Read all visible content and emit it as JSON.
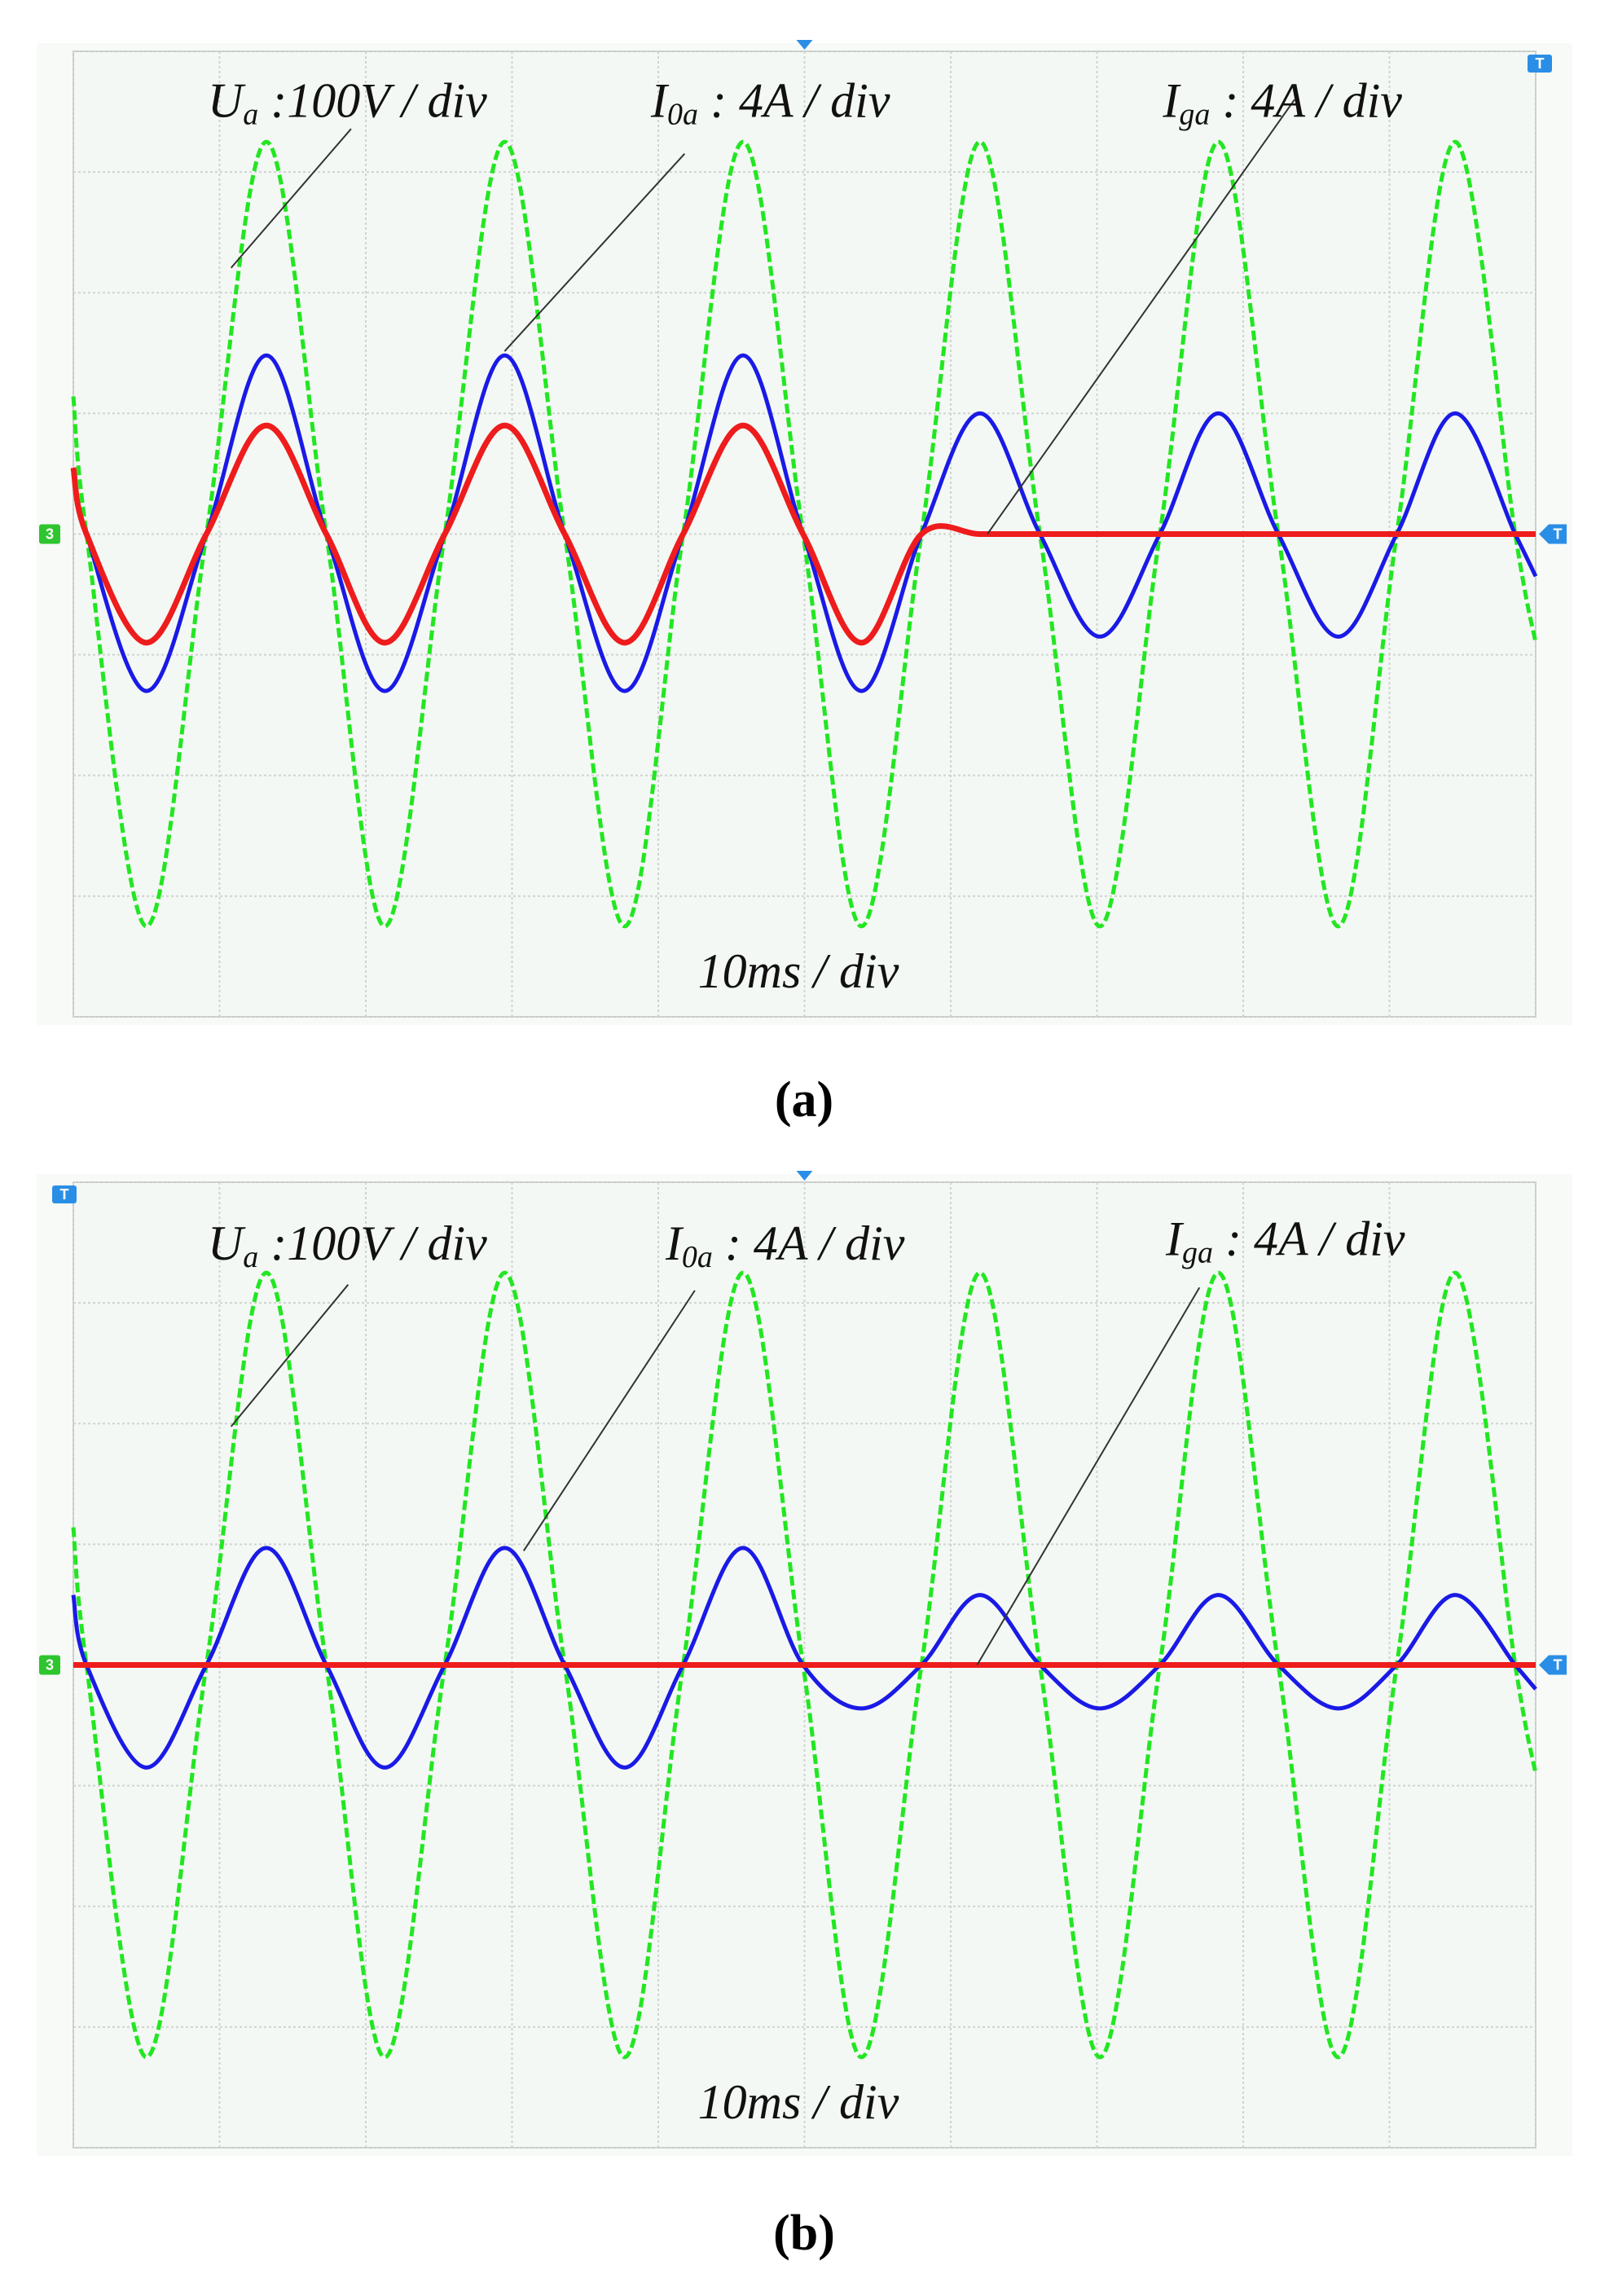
{
  "chart_data": [
    {
      "type": "line",
      "caption": "(a)",
      "x_label": "10ms / div",
      "channel_marker": "3",
      "trigger_marker": "T",
      "xlim": [
        0,
        100
      ],
      "xticks": [
        0,
        10,
        20,
        30,
        40,
        50,
        60,
        70,
        80,
        90,
        100
      ],
      "ylim": [
        -4,
        4
      ],
      "yticks": [
        -4,
        -3,
        -2,
        -1,
        0,
        1,
        2,
        3,
        4
      ],
      "grid": true,
      "x": [
        0,
        0.9,
        5.0,
        9.1,
        13.2,
        17.3,
        21.3,
        25.4,
        29.5,
        33.6,
        37.7,
        41.7,
        45.8,
        49.9,
        53.9,
        58.0,
        62.0,
        66.1,
        70.2,
        74.3,
        78.3,
        82.4,
        86.5,
        90.5,
        94.5,
        98.6,
        100
      ],
      "series": [
        {
          "name": "Ua",
          "color": "#22e622",
          "values": [
            1.14,
            0,
            -3.25,
            0,
            3.25,
            0,
            -3.25,
            0,
            3.25,
            0,
            -3.25,
            0,
            3.25,
            0,
            -3.25,
            0,
            3.25,
            0,
            -3.25,
            0,
            3.25,
            0,
            -3.25,
            0,
            3.25,
            0,
            -0.9
          ]
        },
        {
          "name": "I0a",
          "color": "#1a1ae6",
          "values": [
            0.5,
            0,
            -1.3,
            0,
            1.48,
            0,
            -1.3,
            0,
            1.48,
            0,
            -1.3,
            0,
            1.48,
            0,
            -1.3,
            0,
            1.0,
            0,
            -0.85,
            0,
            1.0,
            0,
            -0.85,
            0,
            1.0,
            0,
            -0.35
          ]
        },
        {
          "name": "Iga",
          "color": "#ee1c1c",
          "values": [
            0.55,
            0,
            -0.9,
            0,
            0.9,
            0,
            -0.9,
            0,
            0.9,
            0,
            -0.9,
            0,
            0.9,
            0,
            -0.9,
            0,
            0,
            0,
            0,
            0,
            0,
            0,
            0,
            0,
            0,
            0,
            0
          ]
        }
      ],
      "annotations": [
        {
          "symbol": "U",
          "subscript": "a",
          "text": " :100V / div"
        },
        {
          "symbol": "I",
          "subscript": "0a",
          "text": " : 4A / div"
        },
        {
          "symbol": "I",
          "subscript": "ga",
          "text": " : 4A / div"
        }
      ]
    },
    {
      "type": "line",
      "caption": "(b)",
      "x_label": "10ms / div",
      "channel_marker": "3",
      "trigger_marker": "T",
      "xlim": [
        0,
        100
      ],
      "xticks": [
        0,
        10,
        20,
        30,
        40,
        50,
        60,
        70,
        80,
        90,
        100
      ],
      "ylim": [
        -4,
        4
      ],
      "yticks": [
        -4,
        -3,
        -2,
        -1,
        0,
        1,
        2,
        3,
        4
      ],
      "grid": true,
      "x": [
        0,
        0.9,
        5.0,
        9.1,
        13.2,
        17.3,
        21.3,
        25.4,
        29.5,
        33.6,
        37.7,
        41.7,
        45.8,
        49.9,
        53.9,
        58.0,
        62.0,
        66.1,
        70.2,
        74.3,
        78.3,
        82.4,
        86.5,
        90.5,
        94.5,
        98.6,
        100
      ],
      "series": [
        {
          "name": "Ua",
          "color": "#22e622",
          "values": [
            1.14,
            0,
            -3.25,
            0,
            3.25,
            0,
            -3.25,
            0,
            3.25,
            0,
            -3.25,
            0,
            3.25,
            0,
            -3.25,
            0,
            3.25,
            0,
            -3.25,
            0,
            3.25,
            0,
            -3.25,
            0,
            3.25,
            0,
            -0.9
          ]
        },
        {
          "name": "I0a",
          "color": "#1a1ae6",
          "values": [
            0.58,
            0,
            -0.85,
            0,
            0.97,
            0,
            -0.85,
            0,
            0.97,
            0,
            -0.85,
            0,
            0.97,
            0,
            -0.36,
            0,
            0.58,
            0,
            -0.36,
            0,
            0.58,
            0,
            -0.36,
            0,
            0.58,
            0,
            -0.2
          ]
        },
        {
          "name": "Iga",
          "color": "#ee1c1c",
          "values": [
            0,
            0,
            0,
            0,
            0,
            0,
            0,
            0,
            0,
            0,
            0,
            0,
            0,
            0,
            0,
            0,
            0,
            0,
            0,
            0,
            0,
            0,
            0,
            0,
            0,
            0,
            0
          ]
        }
      ],
      "annotations": [
        {
          "symbol": "U",
          "subscript": "a",
          "text": " :100V / div"
        },
        {
          "symbol": "I",
          "subscript": "0a",
          "text": " : 4A / div"
        },
        {
          "symbol": "I",
          "subscript": "ga",
          "text": " : 4A / div"
        }
      ]
    }
  ]
}
